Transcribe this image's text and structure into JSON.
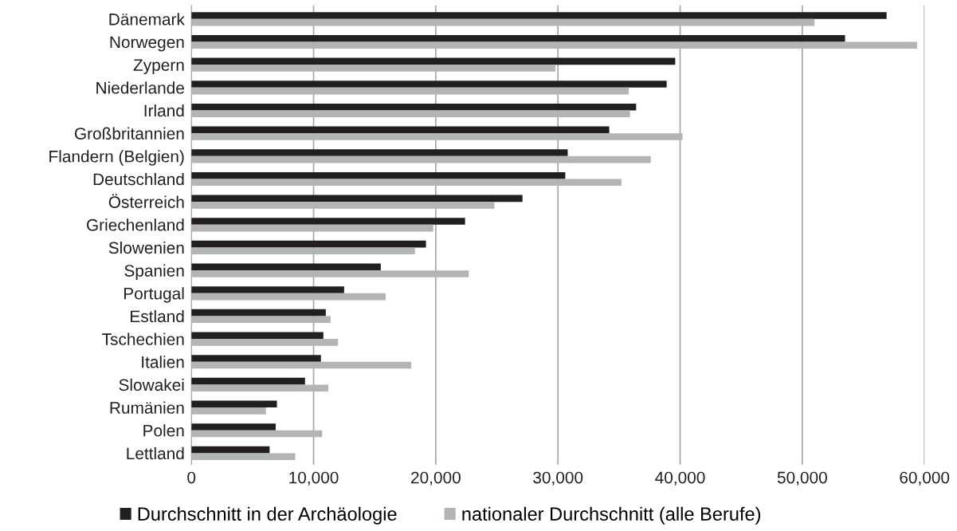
{
  "chart_data": {
    "type": "bar",
    "orientation": "horizontal",
    "categories": [
      "Dänemark",
      "Norwegen",
      "Zypern",
      "Niederlande",
      "Irland",
      "Großbritannien",
      "Flandern (Belgien)",
      "Deutschland",
      "Österreich",
      "Griechenland",
      "Slowenien",
      "Spanien",
      "Portugal",
      "Estland",
      "Tschechien",
      "Italien",
      "Slowakei",
      "Rumänien",
      "Polen",
      "Lettland"
    ],
    "series": [
      {
        "name": "Durchschnitt in der Archäologie",
        "color": "#231f20",
        "values": [
          56900,
          53500,
          39600,
          38900,
          36400,
          34200,
          30800,
          30600,
          27100,
          22400,
          19200,
          15500,
          12500,
          11000,
          10800,
          10600,
          9300,
          7000,
          6900,
          6400
        ]
      },
      {
        "name": "nationaler Durchschnitt (alle Berufe)",
        "color": "#b3b4b6",
        "values": [
          51000,
          59400,
          29800,
          35800,
          35900,
          40200,
          37600,
          35200,
          24800,
          19800,
          18300,
          22700,
          15900,
          11400,
          12000,
          18000,
          11200,
          6100,
          10700,
          8500
        ]
      }
    ],
    "xlim": [
      0,
      60000
    ],
    "xticks": [
      {
        "value": 0,
        "label": "0"
      },
      {
        "value": 10000,
        "label": "10,000"
      },
      {
        "value": 20000,
        "label": "20,000"
      },
      {
        "value": 30000,
        "label": "30,000"
      },
      {
        "value": 40000,
        "label": "40,000"
      },
      {
        "value": 50000,
        "label": "50,000"
      },
      {
        "value": 60000,
        "label": "60,000"
      }
    ],
    "grid": "x",
    "legend": "bottom"
  }
}
